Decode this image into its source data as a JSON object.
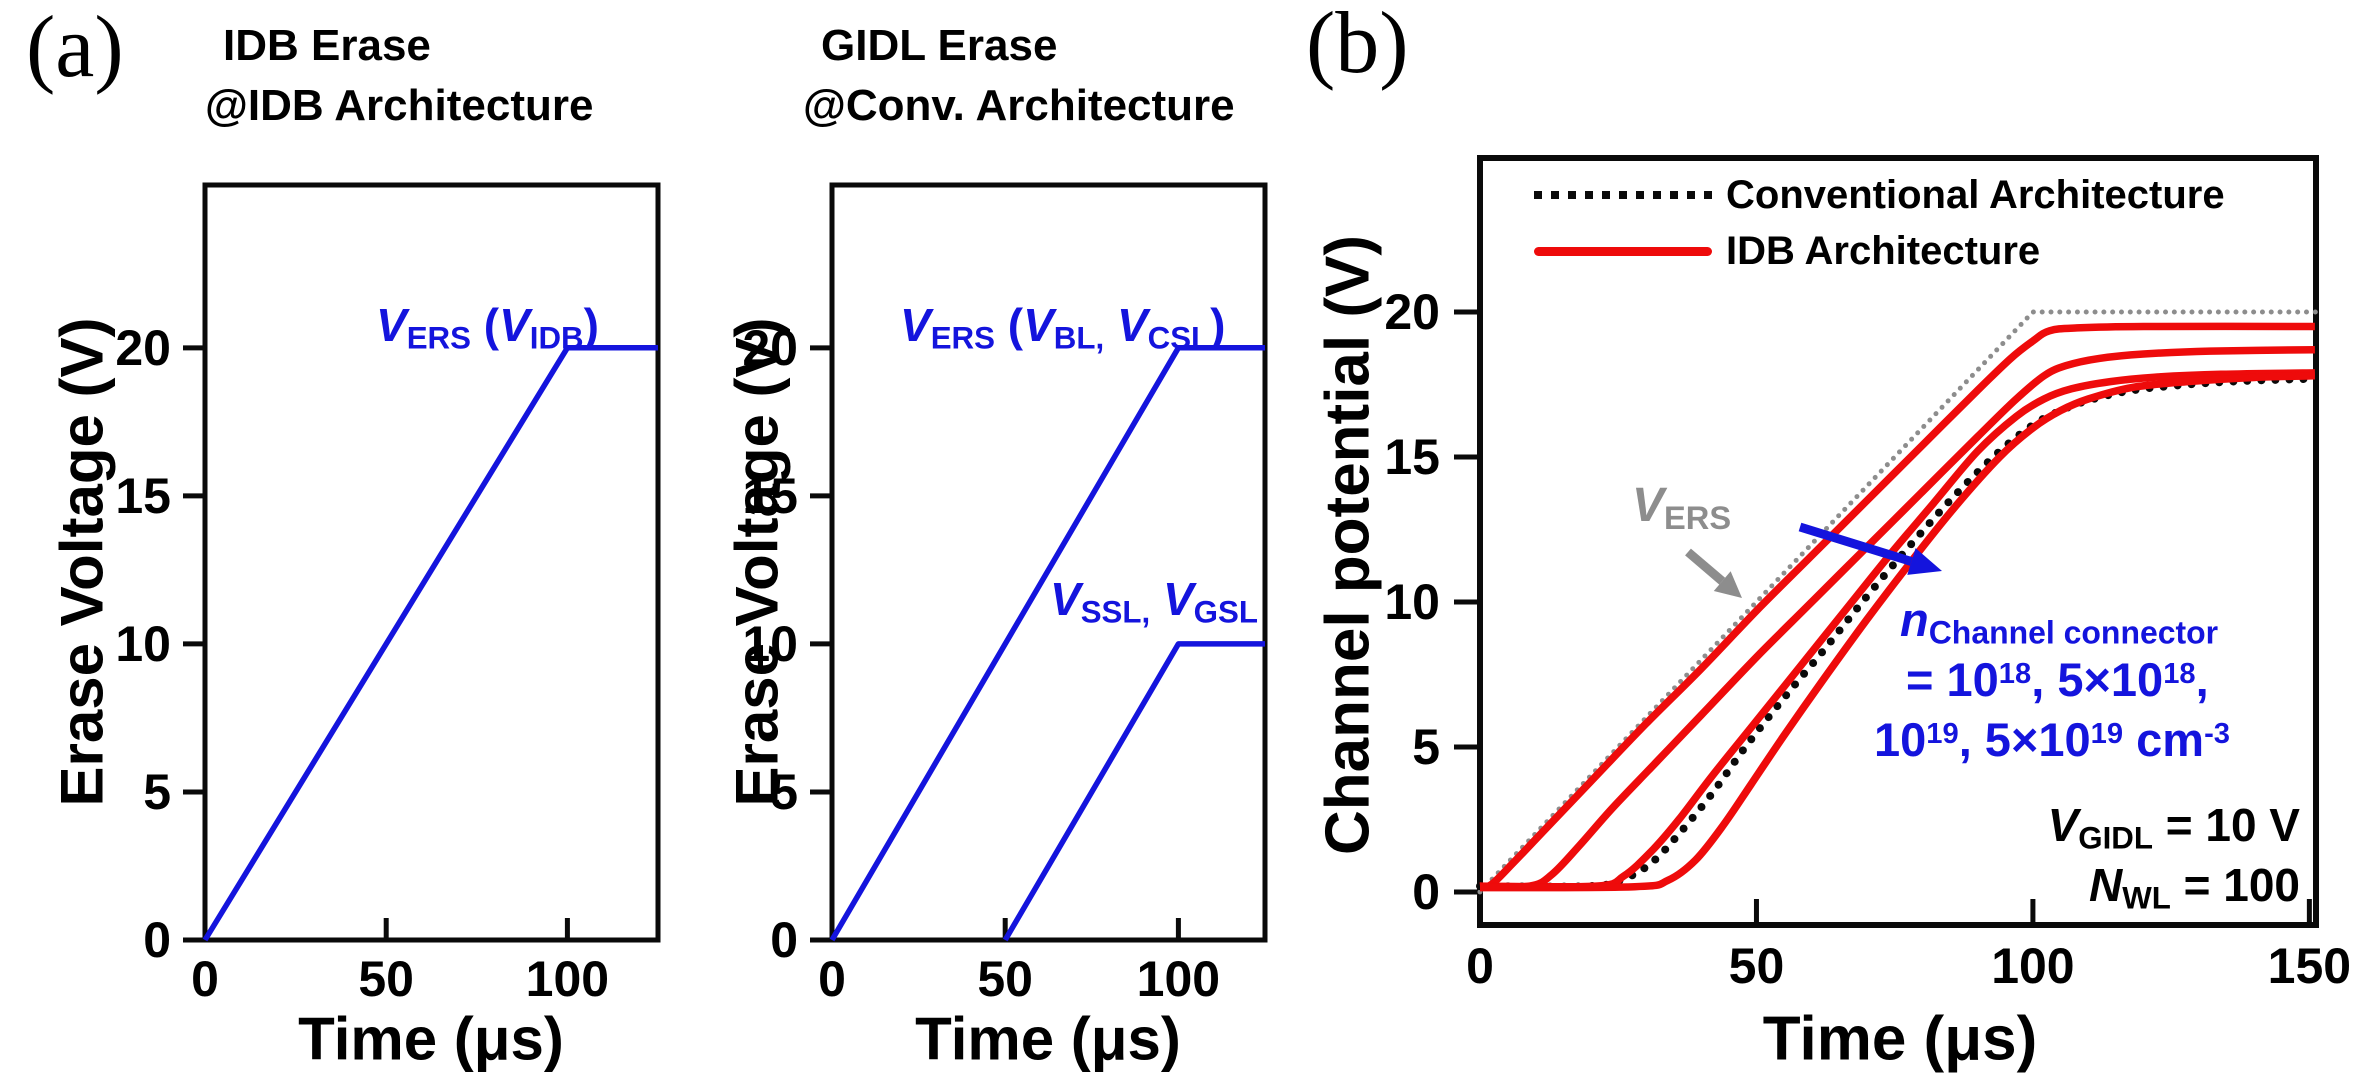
{
  "palette": {
    "blue": "#1414dd",
    "red": "#ee0b0b",
    "black": "#0a0a0a",
    "gray": "#8d8d8d",
    "text": "#000000",
    "bg": "#ffffff"
  },
  "panels": {
    "a": "(a)",
    "b": "(b)"
  },
  "annotations": {
    "p1_vers": [
      {
        "t": "V",
        "s": "it"
      },
      {
        "t": "ERS",
        "s": "sub"
      },
      {
        "t": " ("
      },
      {
        "t": "V",
        "s": "it"
      },
      {
        "t": "IDB",
        "s": "sub"
      },
      {
        "t": ")"
      }
    ],
    "p2_vers": [
      {
        "t": "V",
        "s": "it"
      },
      {
        "t": "ERS",
        "s": "sub"
      },
      {
        "t": " ("
      },
      {
        "t": "V",
        "s": "it"
      },
      {
        "t": "BL,",
        "s": "sub"
      },
      {
        "t": " "
      },
      {
        "t": "V",
        "s": "it"
      },
      {
        "t": "CSL",
        "s": "sub"
      },
      {
        "t": ")"
      }
    ],
    "p2_vssl": [
      {
        "t": "V",
        "s": "it"
      },
      {
        "t": "SSL,",
        "s": "sub"
      },
      {
        "t": " "
      },
      {
        "t": "V",
        "s": "it"
      },
      {
        "t": "GSL",
        "s": "sub"
      }
    ],
    "p3_vers_gray": [
      {
        "t": "V",
        "s": "it"
      },
      {
        "t": "ERS",
        "s": "sub"
      }
    ],
    "p3_n_line1": [
      {
        "t": "n",
        "s": "it"
      },
      {
        "t": "Channel connector",
        "s": "sub"
      }
    ],
    "p3_n_line2": [
      {
        "t": "= 10"
      },
      {
        "t": "18",
        "s": "sup"
      },
      {
        "t": ", 5×10"
      },
      {
        "t": "18",
        "s": "sup"
      },
      {
        "t": ","
      }
    ],
    "p3_n_line3": [
      {
        "t": "10"
      },
      {
        "t": "19",
        "s": "sup"
      },
      {
        "t": ", 5×10"
      },
      {
        "t": "19",
        "s": "sup"
      },
      {
        "t": " cm"
      },
      {
        "t": "-3",
        "s": "sup"
      }
    ],
    "p3_vgidl": [
      {
        "t": "V",
        "s": "it"
      },
      {
        "t": "GIDL",
        "s": "sub"
      },
      {
        "t": " = 10 V"
      }
    ],
    "p3_nwl": [
      {
        "t": "N",
        "s": "it"
      },
      {
        "t": "WL",
        "s": "sub"
      },
      {
        "t": " = 100"
      }
    ]
  },
  "chart_data": [
    {
      "type": "line",
      "title_line1": "IDB Erase",
      "title_line2": "@IDB Architecture",
      "xlabel": "Time (μs)",
      "ylabel": "Erase Voltage (V)",
      "xlim": [
        0,
        125
      ],
      "ylim": [
        0,
        25.5
      ],
      "xticks": [
        0,
        50,
        100
      ],
      "yticks": [
        0,
        5,
        10,
        15,
        20
      ],
      "grid": false,
      "series": [
        {
          "name": "VERS (VIDB) erase pulse",
          "color": "blue",
          "style": "solid",
          "lw": 5.5,
          "smooth": false,
          "points": [
            [
              0,
              0
            ],
            [
              100,
              20
            ],
            [
              125,
              20
            ]
          ]
        }
      ]
    },
    {
      "type": "line",
      "title_line1": "GIDL Erase",
      "title_line2": "@Conv. Architecture",
      "xlabel": "Time (μs)",
      "ylabel": "Erase Voltage (V)",
      "xlim": [
        0,
        125
      ],
      "ylim": [
        0,
        25.5
      ],
      "xticks": [
        0,
        50,
        100
      ],
      "yticks": [
        0,
        5,
        10,
        15,
        20
      ],
      "grid": false,
      "series": [
        {
          "name": "VERS (VBL, VCSL) erase pulse",
          "color": "blue",
          "style": "solid",
          "lw": 5.5,
          "smooth": false,
          "points": [
            [
              0,
              0
            ],
            [
              100,
              20
            ],
            [
              125,
              20
            ]
          ]
        },
        {
          "name": "VSSL, VGSL pulse",
          "color": "blue",
          "style": "solid",
          "lw": 5.5,
          "smooth": false,
          "points": [
            [
              50,
              0
            ],
            [
              100,
              10
            ],
            [
              125,
              10
            ]
          ]
        }
      ]
    },
    {
      "type": "line",
      "xlabel": "Time (μs)",
      "ylabel": "Channel potential (V)",
      "xlim": [
        0,
        151.2
      ],
      "ylim": [
        -1.14,
        25.31
      ],
      "xticks": [
        0,
        50,
        100,
        150
      ],
      "yticks": [
        0,
        5,
        10,
        15,
        20
      ],
      "grid": false,
      "legend": [
        "Conventional Architecture",
        "IDB Architecture"
      ],
      "legend_position": "top-left-inside",
      "conditions": {
        "v_gidl": "10 V",
        "n_wl": "100",
        "n_channel_connector": [
          "1e18",
          "5e18",
          "1e19",
          "5e19"
        ],
        "n_unit": "cm-3"
      },
      "series": [
        {
          "name": "VERS applied ramp",
          "color": "gray",
          "style": "dot",
          "lw": 5,
          "smooth": false,
          "points": [
            [
              0,
              0
            ],
            [
              100,
              20
            ],
            [
              151.2,
              20
            ]
          ]
        },
        {
          "name": "Conventional Architecture",
          "color": "black",
          "style": "dot",
          "lw": 8,
          "smooth": true,
          "points": [
            [
              0,
              0.2
            ],
            [
              20,
              0.2
            ],
            [
              26,
              0.45
            ],
            [
              31,
              1.0
            ],
            [
              36,
              2.0
            ],
            [
              42,
              3.4
            ],
            [
              48,
              5.0
            ],
            [
              55,
              6.7
            ],
            [
              62,
              8.3
            ],
            [
              70,
              10.2
            ],
            [
              78,
              12.0
            ],
            [
              86,
              13.7
            ],
            [
              94,
              15.2
            ],
            [
              100,
              16.1
            ],
            [
              105,
              16.6
            ],
            [
              110,
              16.95
            ],
            [
              118,
              17.3
            ],
            [
              128,
              17.5
            ],
            [
              138,
              17.62
            ],
            [
              151,
              17.7
            ]
          ]
        },
        {
          "name": "IDB Architecture n=1e18",
          "color": "red",
          "style": "solid",
          "lw": 7.5,
          "smooth": true,
          "points": [
            [
              0,
              0.2
            ],
            [
              2,
              0.25
            ],
            [
              6,
              1.0
            ],
            [
              12,
              2.2
            ],
            [
              20,
              3.8
            ],
            [
              30,
              5.8
            ],
            [
              40,
              7.7
            ],
            [
              50,
              9.7
            ],
            [
              60,
              11.6
            ],
            [
              70,
              13.5
            ],
            [
              80,
              15.4
            ],
            [
              90,
              17.3
            ],
            [
              96,
              18.4
            ],
            [
              100,
              19.0
            ],
            [
              103,
              19.35
            ],
            [
              108,
              19.45
            ],
            [
              120,
              19.5
            ],
            [
              151,
              19.5
            ]
          ]
        },
        {
          "name": "IDB Architecture n=5e18",
          "color": "red",
          "style": "solid",
          "lw": 7.5,
          "smooth": true,
          "points": [
            [
              0,
              0.2
            ],
            [
              9,
              0.2
            ],
            [
              13,
              0.6
            ],
            [
              18,
              1.6
            ],
            [
              24,
              2.9
            ],
            [
              32,
              4.5
            ],
            [
              40,
              6.1
            ],
            [
              50,
              8.1
            ],
            [
              60,
              10.0
            ],
            [
              70,
              11.9
            ],
            [
              80,
              13.8
            ],
            [
              90,
              15.7
            ],
            [
              97,
              17.0
            ],
            [
              102,
              17.8
            ],
            [
              106,
              18.15
            ],
            [
              112,
              18.4
            ],
            [
              120,
              18.55
            ],
            [
              132,
              18.65
            ],
            [
              151,
              18.7
            ]
          ]
        },
        {
          "name": "IDB Architecture n=1e19",
          "color": "red",
          "style": "solid",
          "lw": 7.5,
          "smooth": true,
          "points": [
            [
              0,
              0.2
            ],
            [
              21,
              0.2
            ],
            [
              26,
              0.55
            ],
            [
              31,
              1.4
            ],
            [
              36,
              2.5
            ],
            [
              42,
              4.0
            ],
            [
              50,
              5.9
            ],
            [
              58,
              7.8
            ],
            [
              66,
              9.7
            ],
            [
              74,
              11.6
            ],
            [
              82,
              13.4
            ],
            [
              90,
              15.2
            ],
            [
              97,
              16.4
            ],
            [
              102,
              17.0
            ],
            [
              107,
              17.35
            ],
            [
              114,
              17.6
            ],
            [
              122,
              17.75
            ],
            [
              134,
              17.85
            ],
            [
              151,
              17.9
            ]
          ]
        },
        {
          "name": "IDB Architecture n=5e19",
          "color": "red",
          "style": "solid",
          "lw": 7.5,
          "smooth": true,
          "points": [
            [
              0,
              0.15
            ],
            [
              28,
              0.18
            ],
            [
              34,
              0.4
            ],
            [
              39,
              1.1
            ],
            [
              44,
              2.3
            ],
            [
              49,
              3.7
            ],
            [
              55,
              5.4
            ],
            [
              62,
              7.3
            ],
            [
              70,
              9.4
            ],
            [
              78,
              11.4
            ],
            [
              86,
              13.3
            ],
            [
              94,
              15.0
            ],
            [
              100,
              16.0
            ],
            [
              105,
              16.6
            ],
            [
              110,
              17.0
            ],
            [
              118,
              17.4
            ],
            [
              128,
              17.6
            ],
            [
              140,
              17.74
            ],
            [
              151,
              17.8
            ]
          ]
        }
      ]
    }
  ]
}
